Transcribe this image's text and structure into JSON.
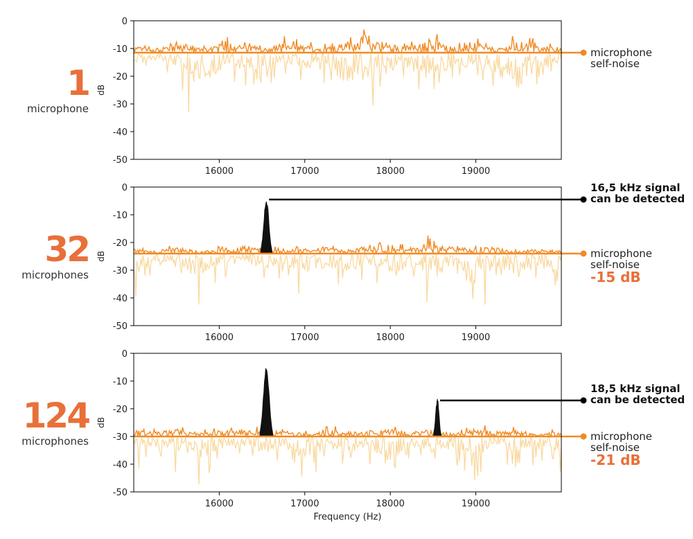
{
  "colors": {
    "noise": "#f08a24",
    "noise_light": "#f9d9a0",
    "signal": "#111111",
    "accent": "#e8703a"
  },
  "chart_data": [
    {
      "type": "line",
      "count": "1",
      "count_label": "microphone",
      "ylabel": "dB",
      "xlabel": "",
      "xlim": [
        15000,
        20000
      ],
      "ylim": [
        -50,
        0
      ],
      "xticks": [
        "16000",
        "17000",
        "18000",
        "19000"
      ],
      "yticks": [
        "0",
        "-10",
        "-20",
        "-30",
        "-40",
        "-50"
      ],
      "self_noise_db": -11.5,
      "self_noise_label": "microphone self-noise",
      "self_noise_label_lines": [
        "microphone",
        "self-noise"
      ],
      "reduction": "",
      "series": [
        {
          "kind": "noise_above",
          "x": [
            15000,
            15250,
            15500,
            15750,
            16000,
            16250,
            16500,
            16750,
            17000,
            17250,
            17500,
            17750,
            18000,
            18250,
            18500,
            18750,
            19000,
            19250,
            19500,
            19750,
            20000
          ],
          "y": [
            -7,
            -9,
            -4,
            -8,
            -6,
            -3,
            -9,
            -5,
            -7,
            -8,
            -4,
            0,
            -6,
            -7,
            -3,
            -8,
            -5,
            -9,
            -4,
            -7,
            -8
          ]
        },
        {
          "kind": "noise_below",
          "x": [
            15000,
            15250,
            15500,
            15750,
            16000,
            16250,
            16500,
            16750,
            17000,
            17250,
            17500,
            17750,
            18000,
            18250,
            18500,
            18750,
            19000,
            19250,
            19500,
            19750,
            20000
          ],
          "y": [
            -21,
            -18,
            -25,
            -40,
            -26,
            -22,
            -30,
            -19,
            -24,
            -28,
            -36,
            -33,
            -27,
            -23,
            -31,
            -25,
            -22,
            -29,
            -41,
            -24,
            -20
          ]
        }
      ]
    },
    {
      "type": "line",
      "count": "32",
      "count_label": "microphones",
      "ylabel": "dB",
      "xlabel": "",
      "xlim": [
        15000,
        20000
      ],
      "ylim": [
        -50,
        0
      ],
      "xticks": [
        "16000",
        "17000",
        "18000",
        "19000"
      ],
      "yticks": [
        "0",
        "-10",
        "-20",
        "-30",
        "-40",
        "-50"
      ],
      "self_noise_db": -24,
      "self_noise_label": "microphone self-noise",
      "self_noise_label_lines": [
        "microphone",
        "self-noise"
      ],
      "reduction": "-15 dB",
      "annotation_lines": [
        "16,5 kHz signal",
        "can be detected"
      ],
      "peaks": [
        {
          "x_khz": 16.5,
          "x": 16550,
          "peak_db": -5,
          "pointer_db": -4.5,
          "half_width": 75
        }
      ],
      "series": [
        {
          "kind": "noise_above",
          "x": [
            15000,
            15250,
            15500,
            15750,
            16000,
            16250,
            16500,
            16750,
            17000,
            17250,
            17500,
            17750,
            18000,
            18250,
            18500,
            18750,
            19000,
            19250,
            19500,
            19750,
            20000
          ],
          "y": [
            -21,
            -22,
            -20,
            -22,
            -21,
            -19,
            -20,
            -22,
            -21,
            -20,
            -22,
            -19,
            -21,
            -20,
            -16,
            -21,
            -19,
            -20,
            -22,
            -21,
            -22
          ]
        },
        {
          "kind": "noise_below",
          "x": [
            15000,
            15250,
            15500,
            15750,
            16000,
            16250,
            16500,
            16750,
            17000,
            17250,
            17500,
            17750,
            18000,
            18250,
            18500,
            18750,
            19000,
            19250,
            19500,
            19750,
            20000
          ],
          "y": [
            -41,
            -33,
            -36,
            -43,
            -34,
            -30,
            -38,
            -32,
            -42,
            -35,
            -39,
            -33,
            -40,
            -36,
            -45,
            -34,
            -50,
            -37,
            -42,
            -35,
            -43
          ]
        }
      ]
    },
    {
      "type": "line",
      "count": "124",
      "count_label": "microphones",
      "ylabel": "dB",
      "xlabel": "Frequency (Hz)",
      "xlim": [
        15000,
        20000
      ],
      "ylim": [
        -50,
        0
      ],
      "xticks": [
        "16000",
        "17000",
        "18000",
        "19000"
      ],
      "yticks": [
        "0",
        "-10",
        "-20",
        "-30",
        "-40",
        "-50"
      ],
      "self_noise_db": -30,
      "self_noise_label": "microphone self-noise",
      "self_noise_label_lines": [
        "microphone",
        "self-noise"
      ],
      "reduction": "-21 dB",
      "annotation_lines": [
        "18,5 kHz signal",
        "can be detected"
      ],
      "peaks": [
        {
          "x_khz": 16.5,
          "x": 16550,
          "peak_db": -5,
          "pointer_db": null,
          "half_width": 85
        },
        {
          "x_khz": 18.5,
          "x": 18550,
          "peak_db": -17,
          "pointer_db": -17,
          "half_width": 50
        }
      ],
      "series": [
        {
          "kind": "noise_above",
          "x": [
            15000,
            15250,
            15500,
            15750,
            16000,
            16250,
            16500,
            16750,
            17000,
            17250,
            17500,
            17750,
            18000,
            18250,
            18500,
            18750,
            19000,
            19250,
            19500,
            19750,
            20000
          ],
          "y": [
            -26,
            -27,
            -25,
            -28,
            -26,
            -25,
            -27,
            -26,
            -28,
            -25,
            -27,
            -26,
            -25,
            -27,
            -26,
            -28,
            -25,
            -27,
            -26,
            -28,
            -27
          ]
        },
        {
          "kind": "noise_below",
          "x": [
            15000,
            15250,
            15500,
            15750,
            16000,
            16250,
            16500,
            16750,
            17000,
            17250,
            17500,
            17750,
            18000,
            18250,
            18500,
            18750,
            19000,
            19250,
            19500,
            19750,
            20000
          ],
          "y": [
            -43,
            -38,
            -46,
            -48,
            -41,
            -37,
            -44,
            -40,
            -47,
            -39,
            -45,
            -42,
            -49,
            -38,
            -44,
            -41,
            -46,
            -39,
            -43,
            -40,
            -44
          ]
        }
      ]
    }
  ]
}
